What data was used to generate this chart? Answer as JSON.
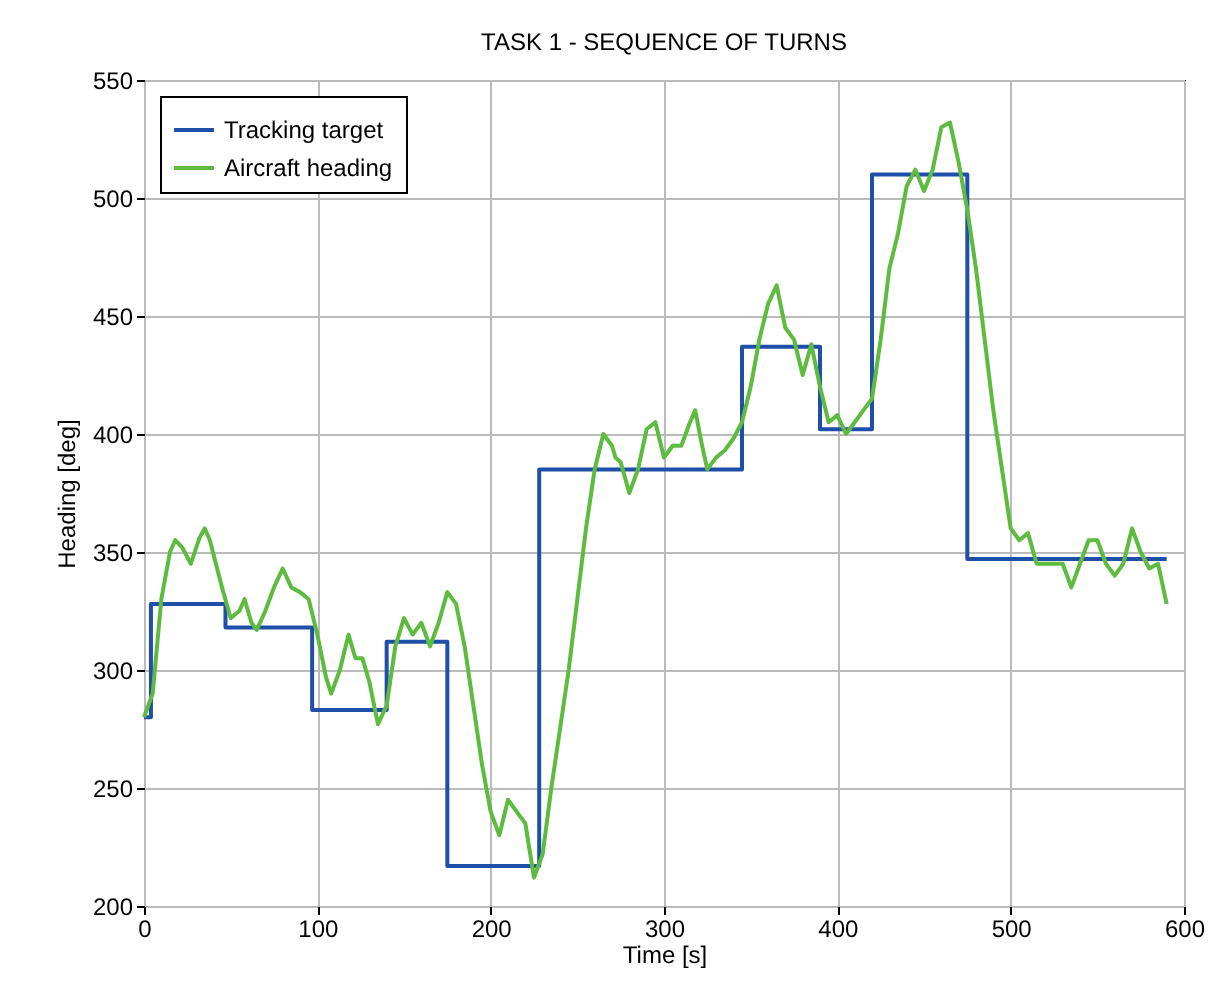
{
  "chart_data": {
    "type": "line",
    "title": "TASK 1 - SEQUENCE OF TURNS",
    "xlabel": "Time [s]",
    "ylabel": "Heading [deg]",
    "xlim": [
      0,
      600
    ],
    "xticks": [
      0,
      100,
      200,
      300,
      400,
      500,
      600
    ],
    "ylim": [
      200,
      550
    ],
    "yticks": [
      200,
      250,
      300,
      350,
      400,
      450,
      500,
      550
    ],
    "grid": true,
    "legend": "top left",
    "series": [
      {
        "name": "Tracking target",
        "type": "step",
        "color": "#1f4fa8",
        "x": [
          0,
          4,
          47,
          97,
          140,
          175,
          228,
          345,
          390,
          420,
          475,
          590
        ],
        "values": [
          280,
          328,
          318,
          283,
          312,
          217,
          385,
          437,
          402,
          510,
          347,
          347
        ]
      },
      {
        "name": "Aircraft heading",
        "type": "line",
        "color": "#5dbb3f",
        "x": [
          0,
          5,
          10,
          15,
          18,
          22,
          27,
          32,
          35,
          38,
          45,
          50,
          55,
          58,
          62,
          65,
          70,
          75,
          80,
          85,
          90,
          95,
          100,
          105,
          108,
          113,
          118,
          122,
          126,
          130,
          135,
          140,
          145,
          150,
          155,
          160,
          165,
          170,
          175,
          180,
          185,
          190,
          195,
          200,
          205,
          210,
          215,
          220,
          225,
          230,
          235,
          240,
          245,
          250,
          255,
          260,
          265,
          270,
          272,
          275,
          280,
          285,
          290,
          295,
          300,
          305,
          310,
          315,
          318,
          322,
          325,
          330,
          335,
          340,
          345,
          350,
          355,
          360,
          365,
          370,
          375,
          380,
          385,
          390,
          395,
          400,
          405,
          410,
          415,
          420,
          425,
          430,
          435,
          440,
          445,
          450,
          455,
          460,
          465,
          470,
          475,
          480,
          485,
          490,
          495,
          500,
          505,
          510,
          515,
          520,
          525,
          530,
          535,
          540,
          545,
          550,
          555,
          560,
          565,
          570,
          575,
          580,
          585,
          590
        ],
        "values": [
          280,
          290,
          330,
          350,
          355,
          352,
          345,
          356,
          360,
          355,
          335,
          322,
          325,
          330,
          320,
          317,
          325,
          335,
          343,
          335,
          333,
          330,
          315,
          297,
          290,
          300,
          315,
          305,
          305,
          295,
          277,
          285,
          310,
          322,
          315,
          320,
          310,
          320,
          333,
          328,
          310,
          285,
          260,
          240,
          230,
          245,
          240,
          235,
          212,
          222,
          250,
          275,
          300,
          330,
          360,
          385,
          400,
          395,
          390,
          388,
          375,
          385,
          402,
          405,
          390,
          395,
          395,
          405,
          410,
          395,
          385,
          390,
          393,
          398,
          405,
          420,
          440,
          455,
          463,
          445,
          440,
          425,
          438,
          420,
          405,
          408,
          400,
          405,
          410,
          415,
          440,
          470,
          485,
          505,
          512,
          503,
          512,
          530,
          532,
          515,
          495,
          470,
          440,
          410,
          385,
          360,
          355,
          358,
          345,
          345,
          345,
          345,
          335,
          345,
          355,
          355,
          345,
          340,
          345,
          360,
          350,
          343,
          345,
          328
        ]
      }
    ]
  }
}
